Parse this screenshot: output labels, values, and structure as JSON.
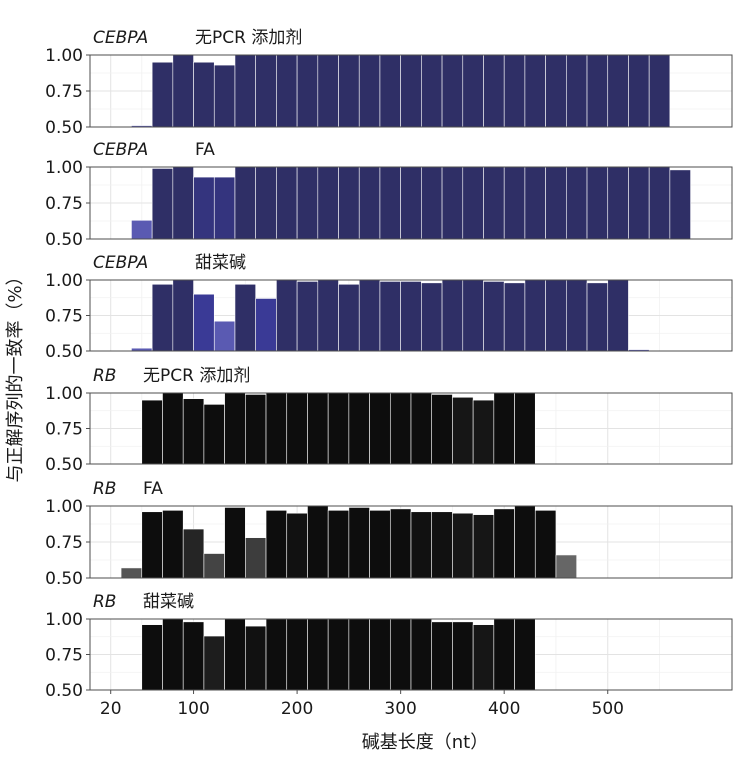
{
  "chart_data": {
    "type": "bar",
    "xlabel": "碱基长度（nt）",
    "ylabel": "与正解序列的一致率（%）",
    "ylim": [
      0.5,
      1.0
    ],
    "yticks": [
      "0.50",
      "0.75",
      "1.00"
    ],
    "xlim": [
      0,
      620
    ],
    "xticks": [
      20,
      100,
      200,
      300,
      400,
      500
    ],
    "xtick_labels": [
      "20",
      "100",
      "200",
      "300",
      "400",
      "500"
    ],
    "bin_width": 20,
    "panels": [
      {
        "gene": "CEBPA",
        "condition": "无PCR 添加剂",
        "bins": [
          {
            "x": 50,
            "value": 0.51,
            "color": "#5a5ab2"
          },
          {
            "x": 70,
            "value": 0.95,
            "color": "#2f2f66"
          },
          {
            "x": 90,
            "value": 1.0,
            "color": "#2f2f66"
          },
          {
            "x": 110,
            "value": 0.95,
            "color": "#2f2f66"
          },
          {
            "x": 130,
            "value": 0.93,
            "color": "#2f2f66"
          },
          {
            "x": 150,
            "value": 1.0,
            "color": "#2f2f66"
          },
          {
            "x": 170,
            "value": 1.0,
            "color": "#2f2f66"
          },
          {
            "x": 190,
            "value": 1.0,
            "color": "#2f2f66"
          },
          {
            "x": 210,
            "value": 1.0,
            "color": "#2f2f66"
          },
          {
            "x": 230,
            "value": 1.0,
            "color": "#2f2f66"
          },
          {
            "x": 250,
            "value": 1.0,
            "color": "#2f2f66"
          },
          {
            "x": 270,
            "value": 1.0,
            "color": "#2f2f66"
          },
          {
            "x": 290,
            "value": 1.0,
            "color": "#2f2f66"
          },
          {
            "x": 310,
            "value": 1.0,
            "color": "#2f2f66"
          },
          {
            "x": 330,
            "value": 1.0,
            "color": "#2f2f66"
          },
          {
            "x": 350,
            "value": 1.0,
            "color": "#2f2f66"
          },
          {
            "x": 370,
            "value": 1.0,
            "color": "#2f2f66"
          },
          {
            "x": 390,
            "value": 1.0,
            "color": "#2f2f66"
          },
          {
            "x": 410,
            "value": 1.0,
            "color": "#2f2f66"
          },
          {
            "x": 430,
            "value": 1.0,
            "color": "#2f2f66"
          },
          {
            "x": 450,
            "value": 1.0,
            "color": "#2f2f66"
          },
          {
            "x": 470,
            "value": 1.0,
            "color": "#2f2f66"
          },
          {
            "x": 490,
            "value": 1.0,
            "color": "#2f2f66"
          },
          {
            "x": 510,
            "value": 1.0,
            "color": "#2f2f66"
          },
          {
            "x": 530,
            "value": 1.0,
            "color": "#2f2f66"
          },
          {
            "x": 550,
            "value": 1.0,
            "color": "#2f2f66"
          }
        ]
      },
      {
        "gene": "CEBPA",
        "condition": "FA",
        "bins": [
          {
            "x": 50,
            "value": 0.63,
            "color": "#5a5ab2"
          },
          {
            "x": 70,
            "value": 0.99,
            "color": "#2f2f66"
          },
          {
            "x": 90,
            "value": 1.0,
            "color": "#2f2f66"
          },
          {
            "x": 110,
            "value": 0.93,
            "color": "#34347e"
          },
          {
            "x": 130,
            "value": 0.93,
            "color": "#34347e"
          },
          {
            "x": 150,
            "value": 1.0,
            "color": "#2f2f66"
          },
          {
            "x": 170,
            "value": 1.0,
            "color": "#2f2f66"
          },
          {
            "x": 190,
            "value": 1.0,
            "color": "#2f2f66"
          },
          {
            "x": 210,
            "value": 1.0,
            "color": "#2f2f66"
          },
          {
            "x": 230,
            "value": 1.0,
            "color": "#2f2f66"
          },
          {
            "x": 250,
            "value": 1.0,
            "color": "#2f2f66"
          },
          {
            "x": 270,
            "value": 1.0,
            "color": "#2f2f66"
          },
          {
            "x": 290,
            "value": 1.0,
            "color": "#2f2f66"
          },
          {
            "x": 310,
            "value": 1.0,
            "color": "#2f2f66"
          },
          {
            "x": 330,
            "value": 1.0,
            "color": "#2f2f66"
          },
          {
            "x": 350,
            "value": 1.0,
            "color": "#2f2f66"
          },
          {
            "x": 370,
            "value": 1.0,
            "color": "#2f2f66"
          },
          {
            "x": 390,
            "value": 1.0,
            "color": "#2f2f66"
          },
          {
            "x": 410,
            "value": 1.0,
            "color": "#2f2f66"
          },
          {
            "x": 430,
            "value": 1.0,
            "color": "#2f2f66"
          },
          {
            "x": 450,
            "value": 1.0,
            "color": "#2f2f66"
          },
          {
            "x": 470,
            "value": 1.0,
            "color": "#2f2f66"
          },
          {
            "x": 490,
            "value": 1.0,
            "color": "#2f2f66"
          },
          {
            "x": 510,
            "value": 1.0,
            "color": "#2f2f66"
          },
          {
            "x": 530,
            "value": 1.0,
            "color": "#2f2f66"
          },
          {
            "x": 550,
            "value": 1.0,
            "color": "#2f2f66"
          },
          {
            "x": 570,
            "value": 0.98,
            "color": "#2f2f66"
          }
        ]
      },
      {
        "gene": "CEBPA",
        "condition": "甜菜碱",
        "bins": [
          {
            "x": 50,
            "value": 0.52,
            "color": "#5a5ab2"
          },
          {
            "x": 70,
            "value": 0.97,
            "color": "#2f2f66"
          },
          {
            "x": 90,
            "value": 1.0,
            "color": "#2f2f66"
          },
          {
            "x": 110,
            "value": 0.9,
            "color": "#3a3a96"
          },
          {
            "x": 130,
            "value": 0.71,
            "color": "#5a5ab2"
          },
          {
            "x": 150,
            "value": 0.97,
            "color": "#2f2f66"
          },
          {
            "x": 170,
            "value": 0.87,
            "color": "#3a3a96"
          },
          {
            "x": 190,
            "value": 1.0,
            "color": "#2f2f66"
          },
          {
            "x": 210,
            "value": 0.99,
            "color": "#2f2f66"
          },
          {
            "x": 230,
            "value": 1.0,
            "color": "#2f2f66"
          },
          {
            "x": 250,
            "value": 0.97,
            "color": "#2f2f66"
          },
          {
            "x": 270,
            "value": 1.0,
            "color": "#2f2f66"
          },
          {
            "x": 290,
            "value": 0.99,
            "color": "#2f2f66"
          },
          {
            "x": 310,
            "value": 0.99,
            "color": "#2f2f66"
          },
          {
            "x": 330,
            "value": 0.98,
            "color": "#2f2f66"
          },
          {
            "x": 350,
            "value": 1.0,
            "color": "#2f2f66"
          },
          {
            "x": 370,
            "value": 1.0,
            "color": "#2f2f66"
          },
          {
            "x": 390,
            "value": 0.99,
            "color": "#2f2f66"
          },
          {
            "x": 410,
            "value": 0.98,
            "color": "#2f2f66"
          },
          {
            "x": 430,
            "value": 1.0,
            "color": "#2f2f66"
          },
          {
            "x": 450,
            "value": 1.0,
            "color": "#2f2f66"
          },
          {
            "x": 470,
            "value": 1.0,
            "color": "#2f2f66"
          },
          {
            "x": 490,
            "value": 0.98,
            "color": "#2f2f66"
          },
          {
            "x": 510,
            "value": 1.0,
            "color": "#2f2f66"
          },
          {
            "x": 530,
            "value": 0.51,
            "color": "#5a5ab2"
          }
        ]
      },
      {
        "gene": "RB",
        "condition": "无PCR 添加剂",
        "bins": [
          {
            "x": 60,
            "value": 0.95,
            "color": "#0d0d0d"
          },
          {
            "x": 80,
            "value": 1.0,
            "color": "#0d0d0d"
          },
          {
            "x": 100,
            "value": 0.96,
            "color": "#0d0d0d"
          },
          {
            "x": 120,
            "value": 0.92,
            "color": "#0d0d0d"
          },
          {
            "x": 140,
            "value": 1.0,
            "color": "#0d0d0d"
          },
          {
            "x": 160,
            "value": 0.99,
            "color": "#0d0d0d"
          },
          {
            "x": 180,
            "value": 1.0,
            "color": "#0d0d0d"
          },
          {
            "x": 200,
            "value": 1.0,
            "color": "#0d0d0d"
          },
          {
            "x": 220,
            "value": 1.0,
            "color": "#0d0d0d"
          },
          {
            "x": 240,
            "value": 1.0,
            "color": "#0d0d0d"
          },
          {
            "x": 260,
            "value": 1.0,
            "color": "#0d0d0d"
          },
          {
            "x": 280,
            "value": 1.0,
            "color": "#0d0d0d"
          },
          {
            "x": 300,
            "value": 1.0,
            "color": "#0d0d0d"
          },
          {
            "x": 320,
            "value": 1.0,
            "color": "#0d0d0d"
          },
          {
            "x": 340,
            "value": 0.99,
            "color": "#0d0d0d"
          },
          {
            "x": 360,
            "value": 0.97,
            "color": "#161616"
          },
          {
            "x": 380,
            "value": 0.95,
            "color": "#161616"
          },
          {
            "x": 400,
            "value": 1.0,
            "color": "#0d0d0d"
          },
          {
            "x": 420,
            "value": 1.0,
            "color": "#0d0d0d"
          }
        ]
      },
      {
        "gene": "RB",
        "condition": "FA",
        "bins": [
          {
            "x": 40,
            "value": 0.57,
            "color": "#555555"
          },
          {
            "x": 60,
            "value": 0.96,
            "color": "#0d0d0d"
          },
          {
            "x": 80,
            "value": 0.97,
            "color": "#0d0d0d"
          },
          {
            "x": 100,
            "value": 0.84,
            "color": "#252525"
          },
          {
            "x": 120,
            "value": 0.67,
            "color": "#444444"
          },
          {
            "x": 140,
            "value": 0.99,
            "color": "#0d0d0d"
          },
          {
            "x": 160,
            "value": 0.78,
            "color": "#3d3d3d"
          },
          {
            "x": 180,
            "value": 0.97,
            "color": "#0d0d0d"
          },
          {
            "x": 200,
            "value": 0.95,
            "color": "#111111"
          },
          {
            "x": 220,
            "value": 1.0,
            "color": "#0d0d0d"
          },
          {
            "x": 240,
            "value": 0.97,
            "color": "#0d0d0d"
          },
          {
            "x": 260,
            "value": 0.99,
            "color": "#0d0d0d"
          },
          {
            "x": 280,
            "value": 0.97,
            "color": "#0d0d0d"
          },
          {
            "x": 300,
            "value": 0.98,
            "color": "#0d0d0d"
          },
          {
            "x": 320,
            "value": 0.96,
            "color": "#111111"
          },
          {
            "x": 340,
            "value": 0.96,
            "color": "#111111"
          },
          {
            "x": 360,
            "value": 0.95,
            "color": "#161616"
          },
          {
            "x": 380,
            "value": 0.94,
            "color": "#161616"
          },
          {
            "x": 400,
            "value": 0.98,
            "color": "#0d0d0d"
          },
          {
            "x": 420,
            "value": 1.0,
            "color": "#0d0d0d"
          },
          {
            "x": 440,
            "value": 0.97,
            "color": "#0d0d0d"
          },
          {
            "x": 460,
            "value": 0.66,
            "color": "#666666"
          }
        ]
      },
      {
        "gene": "RB",
        "condition": "甜菜碱",
        "bins": [
          {
            "x": 60,
            "value": 0.96,
            "color": "#0d0d0d"
          },
          {
            "x": 80,
            "value": 1.0,
            "color": "#0d0d0d"
          },
          {
            "x": 100,
            "value": 0.98,
            "color": "#0d0d0d"
          },
          {
            "x": 120,
            "value": 0.88,
            "color": "#1d1d1d"
          },
          {
            "x": 140,
            "value": 1.0,
            "color": "#0d0d0d"
          },
          {
            "x": 160,
            "value": 0.95,
            "color": "#111111"
          },
          {
            "x": 180,
            "value": 1.0,
            "color": "#0d0d0d"
          },
          {
            "x": 200,
            "value": 1.0,
            "color": "#0d0d0d"
          },
          {
            "x": 220,
            "value": 1.0,
            "color": "#0d0d0d"
          },
          {
            "x": 240,
            "value": 1.0,
            "color": "#0d0d0d"
          },
          {
            "x": 260,
            "value": 1.0,
            "color": "#0d0d0d"
          },
          {
            "x": 280,
            "value": 1.0,
            "color": "#0d0d0d"
          },
          {
            "x": 300,
            "value": 1.0,
            "color": "#0d0d0d"
          },
          {
            "x": 320,
            "value": 1.0,
            "color": "#0d0d0d"
          },
          {
            "x": 340,
            "value": 0.98,
            "color": "#0d0d0d"
          },
          {
            "x": 360,
            "value": 0.98,
            "color": "#0d0d0d"
          },
          {
            "x": 380,
            "value": 0.96,
            "color": "#161616"
          },
          {
            "x": 400,
            "value": 1.0,
            "color": "#0d0d0d"
          },
          {
            "x": 420,
            "value": 1.0,
            "color": "#0d0d0d"
          }
        ]
      }
    ]
  }
}
